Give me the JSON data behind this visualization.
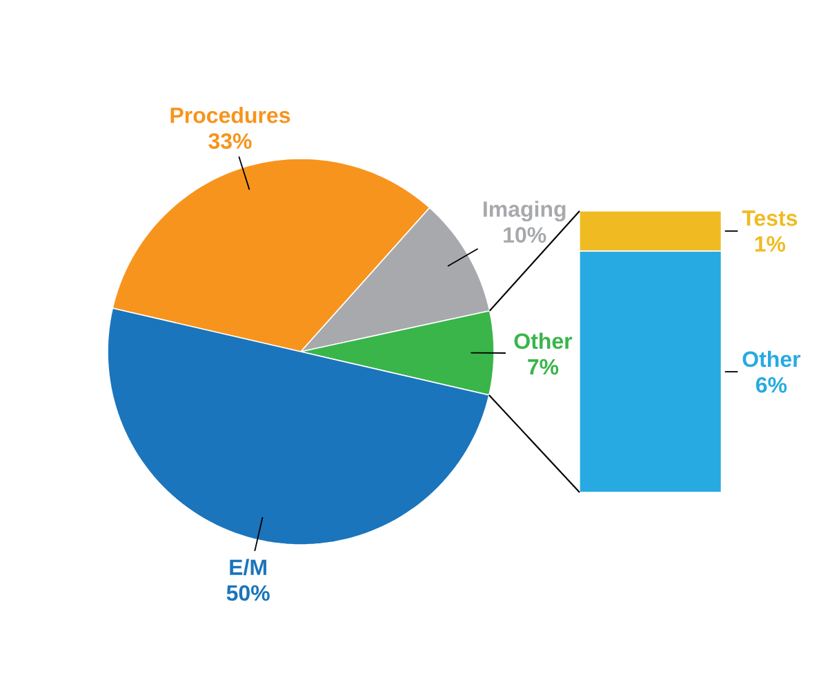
{
  "chart_data": [
    {
      "type": "pie",
      "categories": [
        "Procedures",
        "Imaging",
        "Other",
        "E/M"
      ],
      "values": [
        33,
        10,
        7,
        50
      ],
      "colors": [
        "#f7941d",
        "#a7a9ac",
        "#39b54a",
        "#1b75bc"
      ],
      "value_labels": [
        "33%",
        "10%",
        "7%",
        "50%"
      ]
    },
    {
      "type": "bar",
      "stacked": true,
      "categories": [
        null
      ],
      "series": [
        {
          "name": "Other",
          "color": "#27aae1",
          "values": [
            6
          ],
          "value_labels": [
            "6%"
          ]
        },
        {
          "name": "Tests",
          "color": "#f0bb22",
          "values": [
            1
          ],
          "value_labels": [
            "1%"
          ]
        }
      ]
    }
  ]
}
